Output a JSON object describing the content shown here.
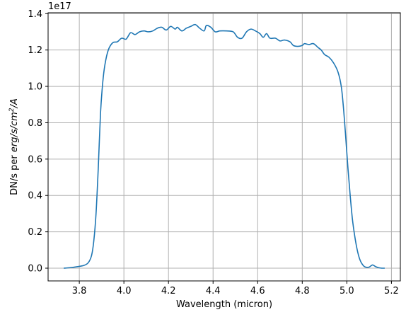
{
  "chart_data": {
    "type": "line",
    "xlabel": "Wavelength (micron)",
    "ylabel_plain": "DN/s per ",
    "ylabel_math_base": "erg/s/cm",
    "ylabel_math_exp": "2",
    "ylabel_math_tail": "/A",
    "offset_text": "1e17",
    "xlim": [
      3.66,
      5.24
    ],
    "ylim": [
      -0.07,
      1.405
    ],
    "y_scale_exponent": 17,
    "grid": true,
    "x_ticks": [
      3.8,
      4.0,
      4.2,
      4.4,
      4.6,
      4.8,
      5.0,
      5.2
    ],
    "x_tick_labels": [
      "3.8",
      "4.0",
      "4.2",
      "4.4",
      "4.6",
      "4.8",
      "5.0",
      "5.2"
    ],
    "y_ticks": [
      0.0,
      0.2,
      0.4,
      0.6,
      0.8,
      1.0,
      1.2,
      1.4
    ],
    "y_tick_labels": [
      "0.0",
      "0.2",
      "0.4",
      "0.6",
      "0.8",
      "1.0",
      "1.2",
      "1.4"
    ],
    "series": [
      {
        "color": "#1f77b4",
        "points": [
          [
            3.73,
            0.0
          ],
          [
            3.76,
            0.003
          ],
          [
            3.79,
            0.008
          ],
          [
            3.82,
            0.015
          ],
          [
            3.84,
            0.03
          ],
          [
            3.855,
            0.07
          ],
          [
            3.865,
            0.15
          ],
          [
            3.875,
            0.3
          ],
          [
            3.885,
            0.55
          ],
          [
            3.895,
            0.85
          ],
          [
            3.905,
            1.02
          ],
          [
            3.915,
            1.12
          ],
          [
            3.93,
            1.2
          ],
          [
            3.95,
            1.24
          ],
          [
            3.97,
            1.245
          ],
          [
            3.99,
            1.265
          ],
          [
            4.01,
            1.26
          ],
          [
            4.03,
            1.295
          ],
          [
            4.05,
            1.285
          ],
          [
            4.07,
            1.3
          ],
          [
            4.09,
            1.305
          ],
          [
            4.11,
            1.3
          ],
          [
            4.13,
            1.305
          ],
          [
            4.15,
            1.32
          ],
          [
            4.17,
            1.325
          ],
          [
            4.19,
            1.31
          ],
          [
            4.21,
            1.33
          ],
          [
            4.23,
            1.315
          ],
          [
            4.24,
            1.325
          ],
          [
            4.26,
            1.305
          ],
          [
            4.28,
            1.32
          ],
          [
            4.3,
            1.33
          ],
          [
            4.32,
            1.34
          ],
          [
            4.34,
            1.32
          ],
          [
            4.36,
            1.305
          ],
          [
            4.37,
            1.335
          ],
          [
            4.39,
            1.325
          ],
          [
            4.41,
            1.3
          ],
          [
            4.43,
            1.305
          ],
          [
            4.46,
            1.305
          ],
          [
            4.49,
            1.3
          ],
          [
            4.51,
            1.27
          ],
          [
            4.53,
            1.265
          ],
          [
            4.55,
            1.3
          ],
          [
            4.57,
            1.315
          ],
          [
            4.59,
            1.305
          ],
          [
            4.61,
            1.29
          ],
          [
            4.625,
            1.27
          ],
          [
            4.64,
            1.29
          ],
          [
            4.655,
            1.265
          ],
          [
            4.68,
            1.265
          ],
          [
            4.7,
            1.25
          ],
          [
            4.72,
            1.255
          ],
          [
            4.745,
            1.245
          ],
          [
            4.76,
            1.225
          ],
          [
            4.78,
            1.22
          ],
          [
            4.8,
            1.225
          ],
          [
            4.81,
            1.235
          ],
          [
            4.83,
            1.23
          ],
          [
            4.85,
            1.235
          ],
          [
            4.87,
            1.215
          ],
          [
            4.885,
            1.2
          ],
          [
            4.9,
            1.175
          ],
          [
            4.92,
            1.16
          ],
          [
            4.94,
            1.13
          ],
          [
            4.96,
            1.08
          ],
          [
            4.975,
            1.0
          ],
          [
            4.985,
            0.88
          ],
          [
            4.995,
            0.72
          ],
          [
            5.005,
            0.55
          ],
          [
            5.015,
            0.4
          ],
          [
            5.025,
            0.27
          ],
          [
            5.035,
            0.18
          ],
          [
            5.045,
            0.11
          ],
          [
            5.055,
            0.06
          ],
          [
            5.065,
            0.03
          ],
          [
            5.08,
            0.008
          ],
          [
            5.1,
            0.006
          ],
          [
            5.115,
            0.018
          ],
          [
            5.13,
            0.008
          ],
          [
            5.15,
            0.001
          ],
          [
            5.17,
            0.0
          ]
        ]
      }
    ]
  }
}
